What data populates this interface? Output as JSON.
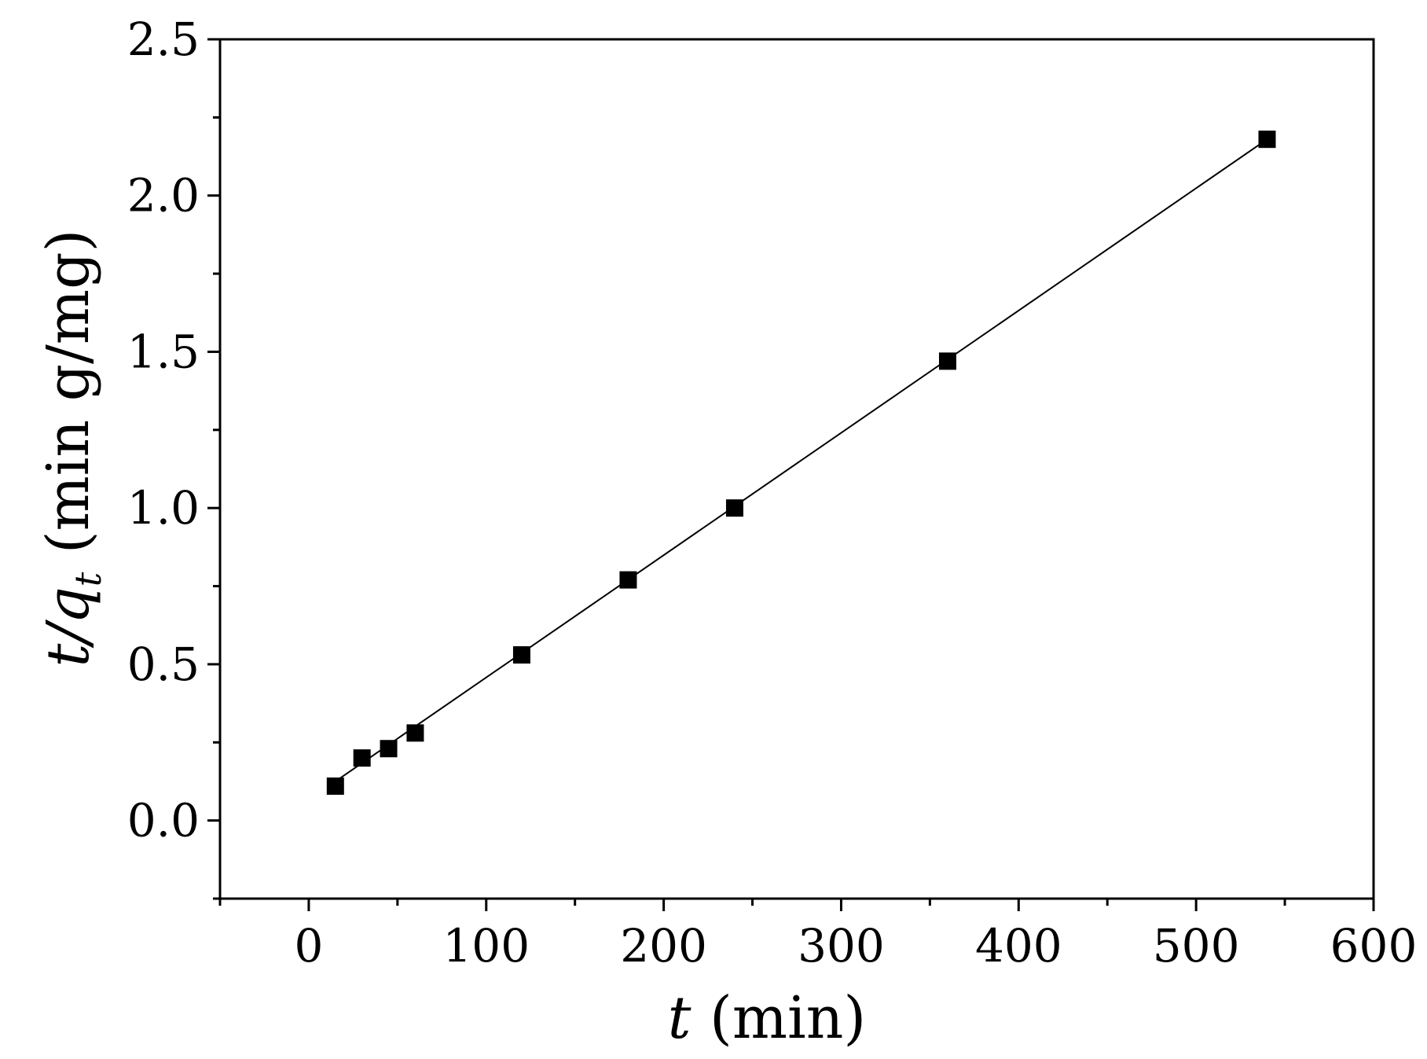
{
  "chart_data": {
    "type": "scatter",
    "title": "",
    "xlabel": {
      "var": "t",
      "unit": " (min)"
    },
    "ylabel": {
      "var": "t/q",
      "sub": "t",
      "unit": " (min g/mg)"
    },
    "xlim": [
      -50,
      600
    ],
    "ylim": [
      -0.25,
      2.5
    ],
    "x_ticks": [
      0,
      100,
      200,
      300,
      400,
      500,
      600
    ],
    "x_tick_labels": [
      "0",
      "100",
      "200",
      "300",
      "400",
      "500",
      "600"
    ],
    "y_ticks": [
      0.0,
      0.5,
      1.0,
      1.5,
      2.0,
      2.5
    ],
    "y_tick_labels": [
      "0.0",
      "0.5",
      "1.0",
      "1.5",
      "2.0",
      "2.5"
    ],
    "grid": false,
    "marker": "square",
    "series": [
      {
        "x": [
          15,
          30,
          45,
          60,
          120,
          180,
          240,
          360,
          540
        ],
        "y": [
          0.11,
          0.2,
          0.23,
          0.28,
          0.53,
          0.77,
          1.0,
          1.47,
          2.18
        ]
      }
    ],
    "fit_line": {
      "x": [
        15,
        540
      ],
      "y": [
        0.125,
        2.18
      ]
    },
    "colors": {
      "marker": "#000000",
      "line": "#000000",
      "axes": "#000000"
    }
  }
}
